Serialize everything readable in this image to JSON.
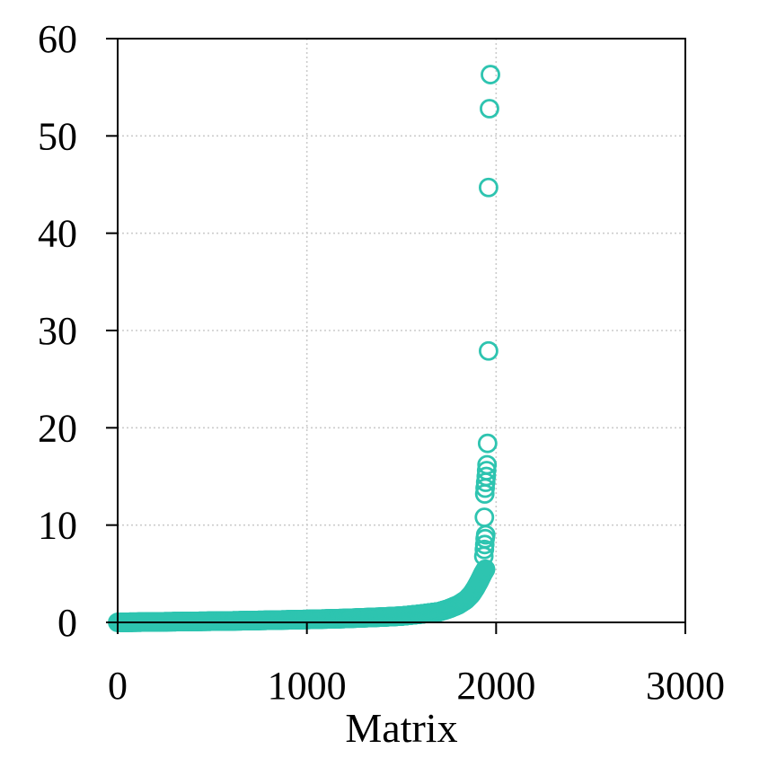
{
  "chart_data": {
    "type": "scatter",
    "title": "",
    "xlabel": "Matrix",
    "ylabel": "",
    "xlim": [
      0,
      3000
    ],
    "ylim": [
      0,
      60
    ],
    "xticks": [
      0,
      1000,
      2000,
      3000
    ],
    "yticks": [
      0,
      10,
      20,
      30,
      40,
      50,
      60
    ],
    "x_tick_labels": [
      "0",
      "1000",
      "2000",
      "3000"
    ],
    "y_tick_labels": [
      "0",
      "10",
      "20",
      "30",
      "40",
      "50",
      "60"
    ],
    "grid": true,
    "marker": "hollow-circle",
    "color": "#2ec4b0",
    "series": [
      {
        "sorted_curve": [
          [
            0,
            0.0
          ],
          [
            200,
            0.05
          ],
          [
            400,
            0.1
          ],
          [
            600,
            0.15
          ],
          [
            800,
            0.22
          ],
          [
            1000,
            0.3
          ],
          [
            1200,
            0.4
          ],
          [
            1400,
            0.55
          ],
          [
            1500,
            0.65
          ],
          [
            1600,
            0.85
          ],
          [
            1700,
            1.1
          ],
          [
            1750,
            1.4
          ],
          [
            1800,
            1.8
          ],
          [
            1840,
            2.3
          ],
          [
            1870,
            2.9
          ],
          [
            1890,
            3.5
          ],
          [
            1910,
            4.2
          ],
          [
            1930,
            5.0
          ],
          [
            1945,
            5.5
          ]
        ],
        "outliers": [
          [
            1935,
            6.8
          ],
          [
            1938,
            7.5
          ],
          [
            1940,
            8.0
          ],
          [
            1942,
            8.6
          ],
          [
            1945,
            9.0
          ],
          [
            1938,
            10.8
          ],
          [
            1940,
            13.2
          ],
          [
            1942,
            13.8
          ],
          [
            1945,
            14.4
          ],
          [
            1948,
            15.0
          ],
          [
            1950,
            15.6
          ],
          [
            1952,
            16.2
          ],
          [
            1955,
            18.4
          ],
          [
            1960,
            27.9
          ],
          [
            1960,
            44.7
          ],
          [
            1965,
            52.8
          ],
          [
            1970,
            56.3
          ]
        ]
      }
    ]
  }
}
